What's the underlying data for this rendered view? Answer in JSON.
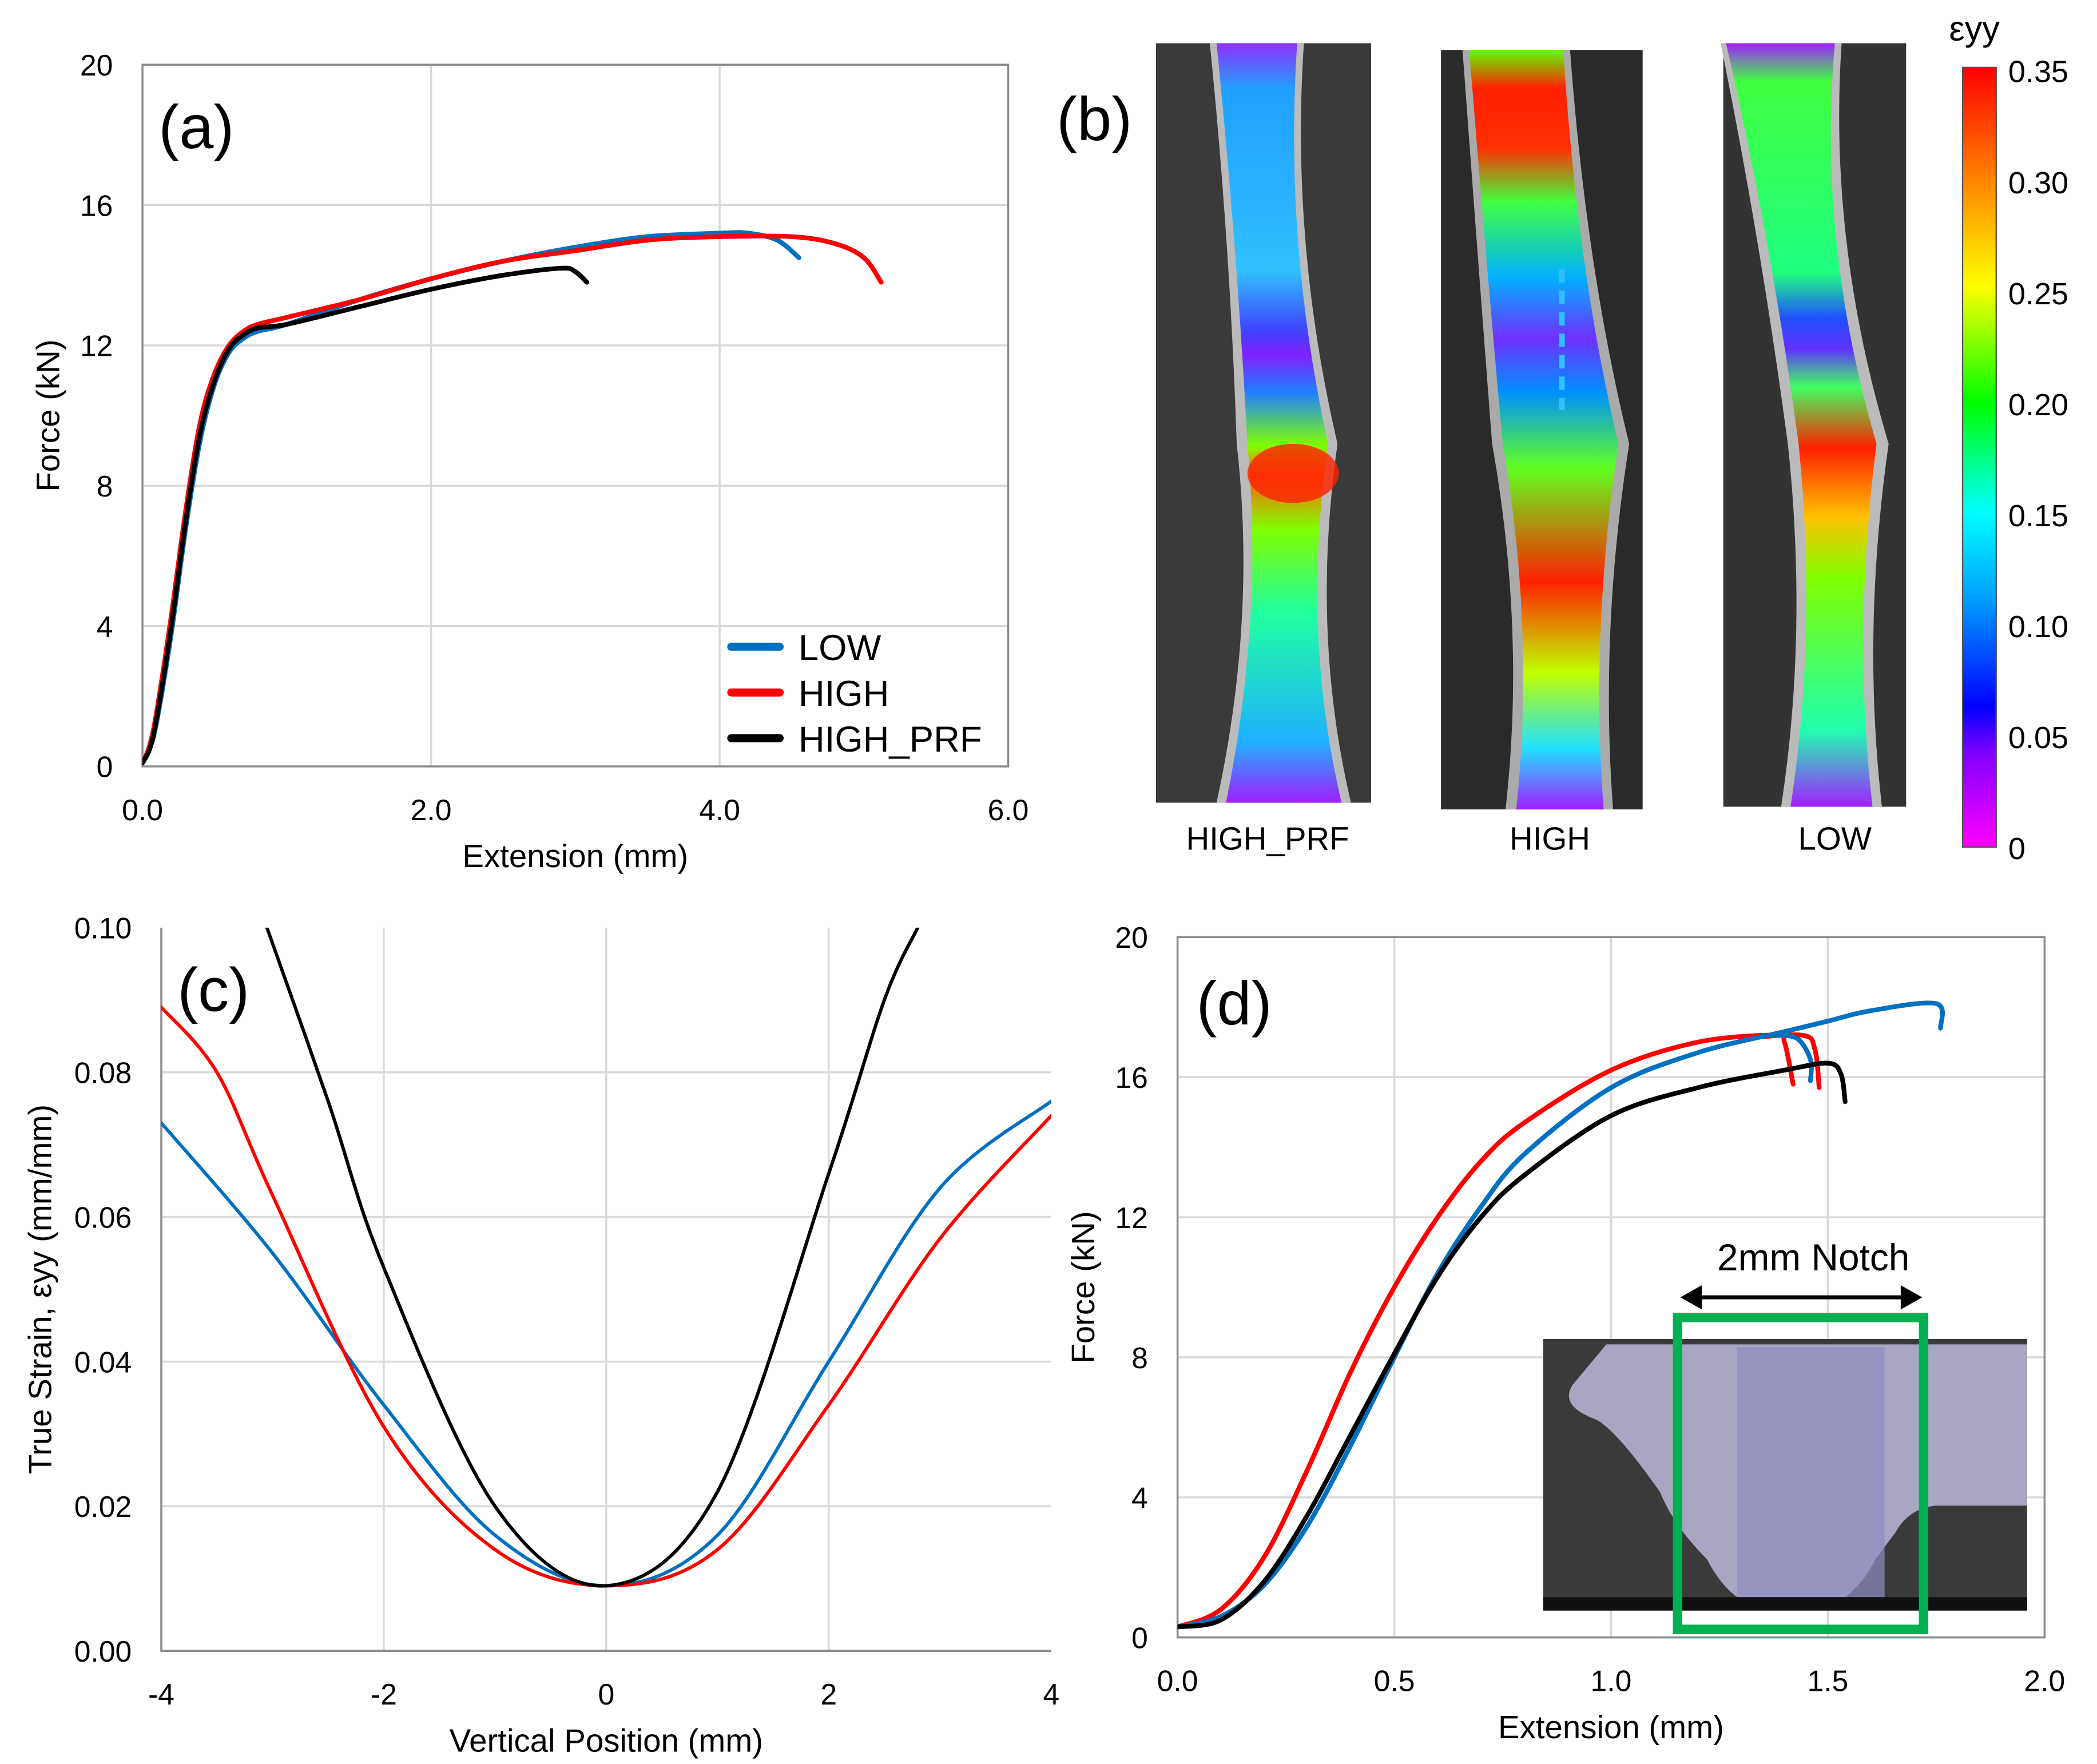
{
  "colors": {
    "LOW": "#0070c0",
    "HIGH": "#ff0000",
    "HIGH_PRF": "#000000",
    "notch_box": "#00b050"
  },
  "chart_data": [
    {
      "id": "a",
      "type": "line",
      "panel_label": "(a)",
      "xlabel": "Extension (mm)",
      "ylabel": "Force (kN)",
      "xlim": [
        0,
        6
      ],
      "ylim": [
        0,
        20
      ],
      "xticks": [
        "0.0",
        "2.0",
        "4.0",
        "6.0"
      ],
      "yticks": [
        "0",
        "4",
        "8",
        "12",
        "16",
        "20"
      ],
      "grid": true,
      "legend": "bottom-right",
      "series": [
        {
          "name": "LOW",
          "points": [
            [
              0,
              0.1
            ],
            [
              0.05,
              0.5
            ],
            [
              0.1,
              1.3
            ],
            [
              0.2,
              3.8
            ],
            [
              0.3,
              6.8
            ],
            [
              0.4,
              9.3
            ],
            [
              0.5,
              10.9
            ],
            [
              0.6,
              11.8
            ],
            [
              0.7,
              12.2
            ],
            [
              0.8,
              12.4
            ],
            [
              1.0,
              12.6
            ],
            [
              1.5,
              13.3
            ],
            [
              2,
              13.9
            ],
            [
              2.5,
              14.4
            ],
            [
              3,
              14.8
            ],
            [
              3.5,
              15.1
            ],
            [
              4,
              15.2
            ],
            [
              4.2,
              15.2
            ],
            [
              4.4,
              15.0
            ],
            [
              4.55,
              14.5
            ]
          ]
        },
        {
          "name": "HIGH",
          "points": [
            [
              0,
              0.1
            ],
            [
              0.05,
              0.6
            ],
            [
              0.1,
              1.6
            ],
            [
              0.2,
              4.3
            ],
            [
              0.3,
              7.3
            ],
            [
              0.4,
              9.8
            ],
            [
              0.5,
              11.2
            ],
            [
              0.6,
              12.0
            ],
            [
              0.7,
              12.4
            ],
            [
              0.8,
              12.6
            ],
            [
              1.0,
              12.8
            ],
            [
              1.5,
              13.3
            ],
            [
              2,
              13.9
            ],
            [
              2.5,
              14.4
            ],
            [
              3,
              14.7
            ],
            [
              3.5,
              15.0
            ],
            [
              4,
              15.1
            ],
            [
              4.5,
              15.1
            ],
            [
              4.8,
              14.9
            ],
            [
              5.0,
              14.5
            ],
            [
              5.12,
              13.8
            ]
          ]
        },
        {
          "name": "HIGH_PRF",
          "points": [
            [
              0,
              0.1
            ],
            [
              0.05,
              0.5
            ],
            [
              0.1,
              1.4
            ],
            [
              0.2,
              4.0
            ],
            [
              0.3,
              7.0
            ],
            [
              0.4,
              9.5
            ],
            [
              0.5,
              11.0
            ],
            [
              0.6,
              11.9
            ],
            [
              0.7,
              12.3
            ],
            [
              0.8,
              12.5
            ],
            [
              1.0,
              12.6
            ],
            [
              1.5,
              13.1
            ],
            [
              2,
              13.6
            ],
            [
              2.5,
              14.0
            ],
            [
              2.9,
              14.2
            ],
            [
              3.0,
              14.1
            ],
            [
              3.08,
              13.8
            ]
          ]
        }
      ]
    },
    {
      "id": "b",
      "type": "heatmap",
      "panel_label": "(b)",
      "colorbar_title": "εyy",
      "colorbar_ticks": [
        "0.35",
        "0.30",
        "0.25",
        "0.20",
        "0.15",
        "0.10",
        "0.05",
        "0"
      ],
      "colorbar_range": [
        0,
        0.35
      ],
      "specimens": [
        "HIGH_PRF",
        "HIGH",
        "LOW"
      ]
    },
    {
      "id": "c",
      "type": "line",
      "panel_label": "(c)",
      "xlabel": "Vertical Position (mm)",
      "ylabel": "True Strain, εyy (mm/mm)",
      "xlim": [
        -4,
        4
      ],
      "ylim": [
        0,
        0.1
      ],
      "xticks": [
        "-4",
        "-2",
        "0",
        "2",
        "4"
      ],
      "yticks": [
        "0.00",
        "0.02",
        "0.04",
        "0.06",
        "0.08",
        "0.10"
      ],
      "grid": true,
      "series": [
        {
          "name": "LOW",
          "points": [
            [
              -4,
              0.073
            ],
            [
              -3,
              0.055
            ],
            [
              -2,
              0.034
            ],
            [
              -1,
              0.016
            ],
            [
              0,
              0.009
            ],
            [
              1,
              0.016
            ],
            [
              2,
              0.04
            ],
            [
              3,
              0.064
            ],
            [
              4,
              0.076
            ]
          ]
        },
        {
          "name": "HIGH",
          "points": [
            [
              -4,
              0.089
            ],
            [
              -3.5,
              0.08
            ],
            [
              -3,
              0.063
            ],
            [
              -2,
              0.031
            ],
            [
              -1,
              0.014
            ],
            [
              0,
              0.009
            ],
            [
              1,
              0.014
            ],
            [
              2,
              0.034
            ],
            [
              3,
              0.057
            ],
            [
              4,
              0.074
            ]
          ]
        },
        {
          "name": "HIGH_PRF",
          "points": [
            [
              -3.05,
              0.1
            ],
            [
              -2.5,
              0.076
            ],
            [
              -2,
              0.053
            ],
            [
              -1,
              0.02
            ],
            [
              0,
              0.009
            ],
            [
              1,
              0.022
            ],
            [
              2,
              0.066
            ],
            [
              2.5,
              0.09
            ],
            [
              2.8,
              0.1
            ]
          ]
        }
      ]
    },
    {
      "id": "d",
      "type": "line",
      "panel_label": "(d)",
      "xlabel": "Extension (mm)",
      "ylabel": "Force (kN)",
      "xlim": [
        0,
        2
      ],
      "ylim": [
        0,
        20
      ],
      "xticks": [
        "0.0",
        "0.5",
        "1.0",
        "1.5",
        "2.0"
      ],
      "yticks": [
        "0",
        "4",
        "8",
        "12",
        "16",
        "20"
      ],
      "grid": true,
      "annotation": "2mm Notch",
      "series": [
        {
          "name": "HIGH",
          "points": [
            [
              0,
              0.3
            ],
            [
              0.1,
              0.8
            ],
            [
              0.2,
              2.3
            ],
            [
              0.3,
              4.8
            ],
            [
              0.4,
              7.6
            ],
            [
              0.5,
              10
            ],
            [
              0.6,
              12
            ],
            [
              0.7,
              13.6
            ],
            [
              0.8,
              14.7
            ],
            [
              1.0,
              16.2
            ],
            [
              1.2,
              17
            ],
            [
              1.38,
              17.2
            ],
            [
              1.4,
              17
            ],
            [
              1.42,
              15.8
            ]
          ]
        },
        {
          "name": "HIGH",
          "points": [
            [
              1.3,
              17.1
            ],
            [
              1.44,
              17.2
            ],
            [
              1.47,
              16.8
            ],
            [
              1.48,
              15.7
            ]
          ]
        },
        {
          "name": "LOW",
          "points": [
            [
              0,
              0.3
            ],
            [
              0.1,
              0.6
            ],
            [
              0.2,
              1.5
            ],
            [
              0.3,
              3.2
            ],
            [
              0.4,
              5.5
            ],
            [
              0.5,
              8
            ],
            [
              0.6,
              10.4
            ],
            [
              0.7,
              12.3
            ],
            [
              0.8,
              13.8
            ],
            [
              1.0,
              15.7
            ],
            [
              1.2,
              16.7
            ],
            [
              1.4,
              17.3
            ],
            [
              1.5,
              17.6
            ],
            [
              1.6,
              17.9
            ],
            [
              1.75,
              18.1
            ],
            [
              1.76,
              17.4
            ]
          ]
        },
        {
          "name": "LOW",
          "points": [
            [
              1.38,
              17.2
            ],
            [
              1.43,
              17.1
            ],
            [
              1.46,
              16.5
            ],
            [
              1.46,
              15.9
            ]
          ]
        },
        {
          "name": "HIGH_PRF",
          "points": [
            [
              0,
              0.3
            ],
            [
              0.1,
              0.5
            ],
            [
              0.2,
              1.6
            ],
            [
              0.3,
              3.5
            ],
            [
              0.4,
              5.8
            ],
            [
              0.5,
              8.1
            ],
            [
              0.6,
              10.3
            ],
            [
              0.7,
              12
            ],
            [
              0.8,
              13.2
            ],
            [
              1.0,
              14.9
            ],
            [
              1.2,
              15.7
            ],
            [
              1.4,
              16.2
            ],
            [
              1.5,
              16.4
            ],
            [
              1.53,
              16.1
            ],
            [
              1.54,
              15.3
            ]
          ]
        }
      ]
    }
  ]
}
